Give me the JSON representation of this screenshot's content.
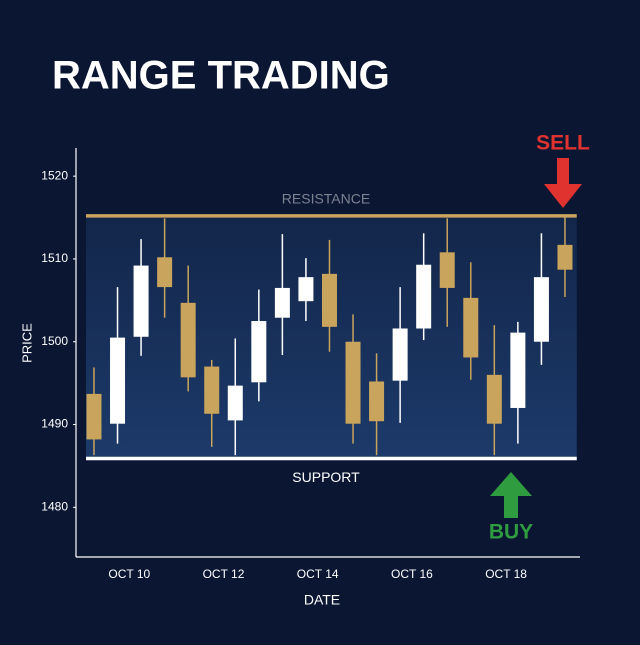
{
  "chart_data": {
    "type": "candlestick",
    "title": "RANGE TRADING",
    "x_label": "DATE",
    "y_label": "PRICE",
    "categories": [
      null,
      "OCT 10",
      null,
      null,
      null,
      "OCT 12",
      null,
      null,
      null,
      "OCT 14",
      null,
      null,
      null,
      "OCT 16",
      null,
      null,
      null,
      "OCT 18",
      null,
      null,
      null
    ],
    "open": [
      1493.7,
      1490.1,
      1500.6,
      1510.2,
      1504.7,
      1497.0,
      1490.5,
      1495.1,
      1502.9,
      1504.9,
      1508.2,
      1500.0,
      1495.2,
      1495.3,
      1501.6,
      1510.8,
      1505.3,
      1496.0,
      1492.0,
      1500.0,
      1511.7
    ],
    "high": [
      1496.9,
      1506.6,
      1512.4,
      1514.9,
      1509.2,
      1497.8,
      1500.4,
      1506.3,
      1513.0,
      1510.1,
      1512.3,
      1503.3,
      1498.6,
      1506.6,
      1513.1,
      1514.9,
      1509.6,
      1502.0,
      1502.4,
      1513.1,
      1515.1
    ],
    "low": [
      1486.3,
      1487.7,
      1498.3,
      1502.9,
      1494.0,
      1487.3,
      1486.3,
      1492.8,
      1498.4,
      1502.5,
      1498.8,
      1487.7,
      1486.3,
      1490.2,
      1500.2,
      1501.8,
      1495.4,
      1486.3,
      1487.7,
      1497.2,
      1505.4
    ],
    "close": [
      1488.2,
      1500.5,
      1509.2,
      1506.6,
      1495.7,
      1491.3,
      1494.7,
      1502.5,
      1506.5,
      1507.8,
      1501.8,
      1490.1,
      1490.4,
      1501.6,
      1509.3,
      1506.5,
      1498.1,
      1490.1,
      1501.1,
      1507.8,
      1508.7
    ],
    "up_color": "#ffffff",
    "down_color": "#c9a45c",
    "levels": [
      {
        "label": "RESISTANCE",
        "value": 1515.2,
        "color": "#c9a45c"
      },
      {
        "label": "SUPPORT",
        "value": 1485.9,
        "color": "#ffffff"
      }
    ],
    "annotations": [
      {
        "text": "SELL",
        "color": "#e0322e"
      },
      {
        "text": "BUY",
        "color": "#2e9c3f"
      }
    ],
    "ylim": [
      1474,
      1523.4
    ],
    "yticks": [
      1480,
      1490,
      1500,
      1510,
      1520
    ],
    "grid": false
  }
}
